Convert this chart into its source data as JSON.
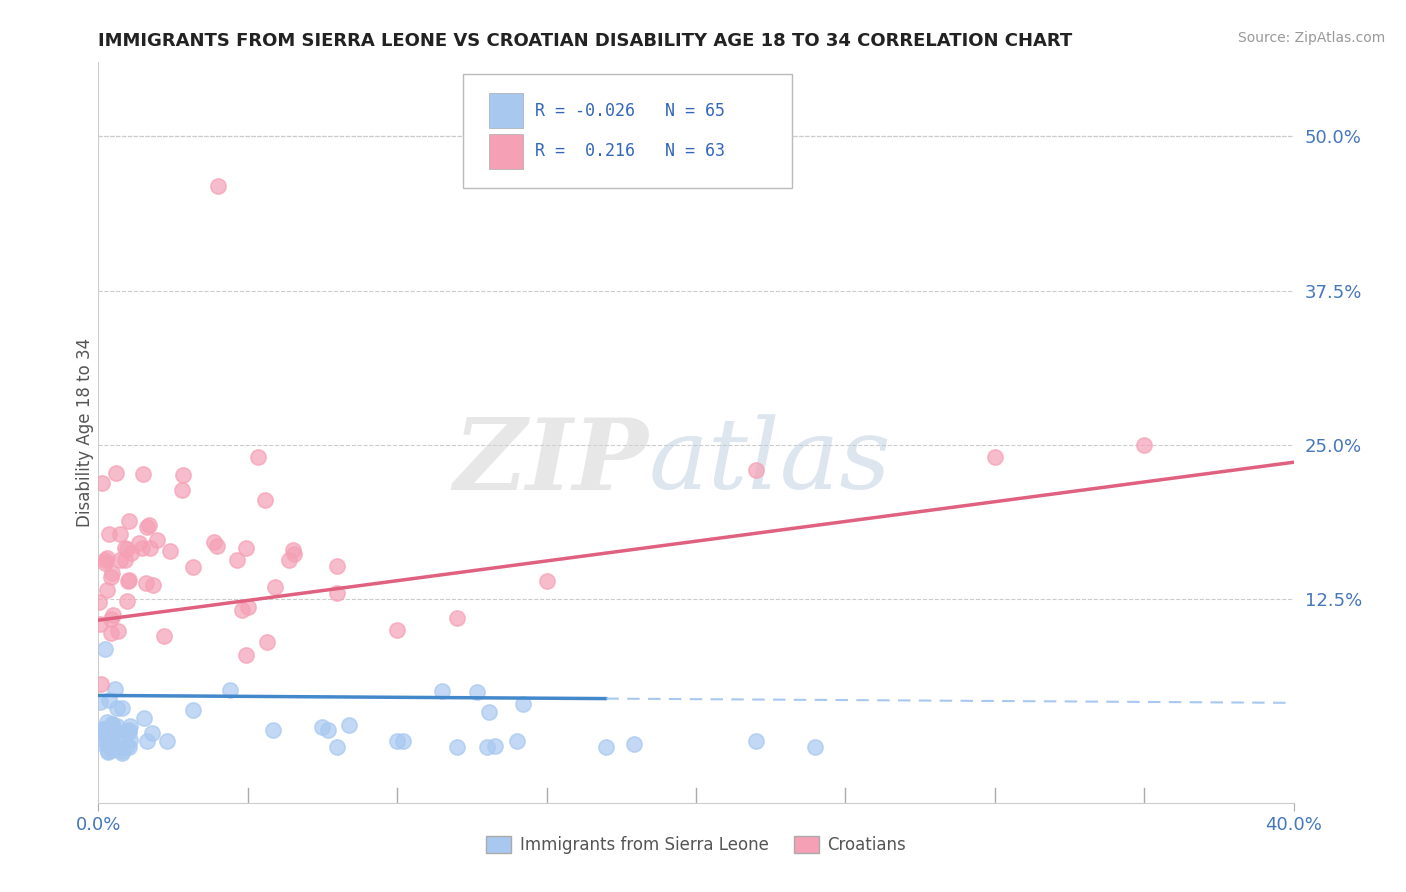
{
  "title": "IMMIGRANTS FROM SIERRA LEONE VS CROATIAN DISABILITY AGE 18 TO 34 CORRELATION CHART",
  "source": "Source: ZipAtlas.com",
  "ylabel": "Disability Age 18 to 34",
  "right_yticks": [
    "50.0%",
    "37.5%",
    "25.0%",
    "12.5%"
  ],
  "right_ytick_vals": [
    0.5,
    0.375,
    0.25,
    0.125
  ],
  "xlim": [
    0.0,
    0.4
  ],
  "ylim": [
    -0.04,
    0.56
  ],
  "color_blue": "#a8c8f0",
  "color_pink": "#f5a0b5",
  "line_blue_solid": "#4488cc",
  "line_blue_dash": "#a8c8f0",
  "line_pink": "#e06080",
  "legend_items": [
    "Immigrants from Sierra Leone",
    "Croatians"
  ],
  "watermark_zip_color": "#d8d8d8",
  "watermark_atlas_color": "#b8cce0"
}
